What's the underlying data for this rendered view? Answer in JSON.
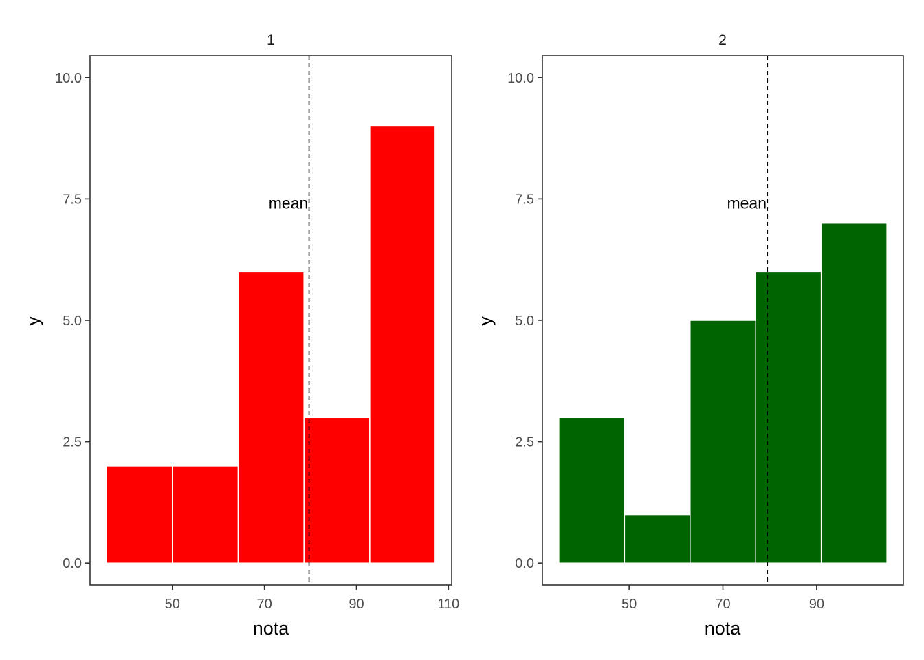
{
  "chart_data": [
    {
      "type": "bar",
      "panel_label": "1",
      "xlabel": "nota",
      "ylabel": "y",
      "fill_color": "#ff0000",
      "bins": [
        {
          "x_start": 35.7,
          "x_end": 50.0,
          "value": 2
        },
        {
          "x_start": 50.0,
          "x_end": 64.3,
          "value": 2
        },
        {
          "x_start": 64.3,
          "x_end": 78.6,
          "value": 6
        },
        {
          "x_start": 78.6,
          "x_end": 92.9,
          "value": 3
        },
        {
          "x_start": 92.9,
          "x_end": 107.1,
          "value": 9
        }
      ],
      "mean": 79.7,
      "mean_label": "mean",
      "mean_label_y": 7.4,
      "xlim": [
        32.1,
        110.7
      ],
      "ylim": [
        -0.45,
        10.45
      ],
      "x_ticks": [
        50,
        70,
        90,
        110
      ],
      "x_tick_labels": [
        "50",
        "70",
        "90",
        "110"
      ],
      "y_ticks": [
        0,
        2.5,
        5,
        7.5,
        10
      ],
      "y_tick_labels": [
        "0.0",
        "2.5",
        "5.0",
        "7.5",
        "10.0"
      ],
      "grid": false
    },
    {
      "type": "bar",
      "panel_label": "2",
      "xlabel": "nota",
      "ylabel": "y",
      "fill_color": "#006400",
      "bins": [
        {
          "x_start": 35.0,
          "x_end": 49.0,
          "value": 3
        },
        {
          "x_start": 49.0,
          "x_end": 63.0,
          "value": 1
        },
        {
          "x_start": 63.0,
          "x_end": 77.0,
          "value": 5
        },
        {
          "x_start": 77.0,
          "x_end": 91.0,
          "value": 6
        },
        {
          "x_start": 91.0,
          "x_end": 105.0,
          "value": 7
        }
      ],
      "mean": 79.5,
      "mean_label": "mean",
      "mean_label_y": 7.4,
      "xlim": [
        31.5,
        108.5
      ],
      "ylim": [
        -0.45,
        10.45
      ],
      "x_ticks": [
        50,
        70,
        90
      ],
      "x_tick_labels": [
        "50",
        "70",
        "90"
      ],
      "y_ticks": [
        0,
        2.5,
        5,
        7.5,
        10
      ],
      "y_tick_labels": [
        "0.0",
        "2.5",
        "5.0",
        "7.5",
        "10.0"
      ],
      "grid": false
    }
  ]
}
